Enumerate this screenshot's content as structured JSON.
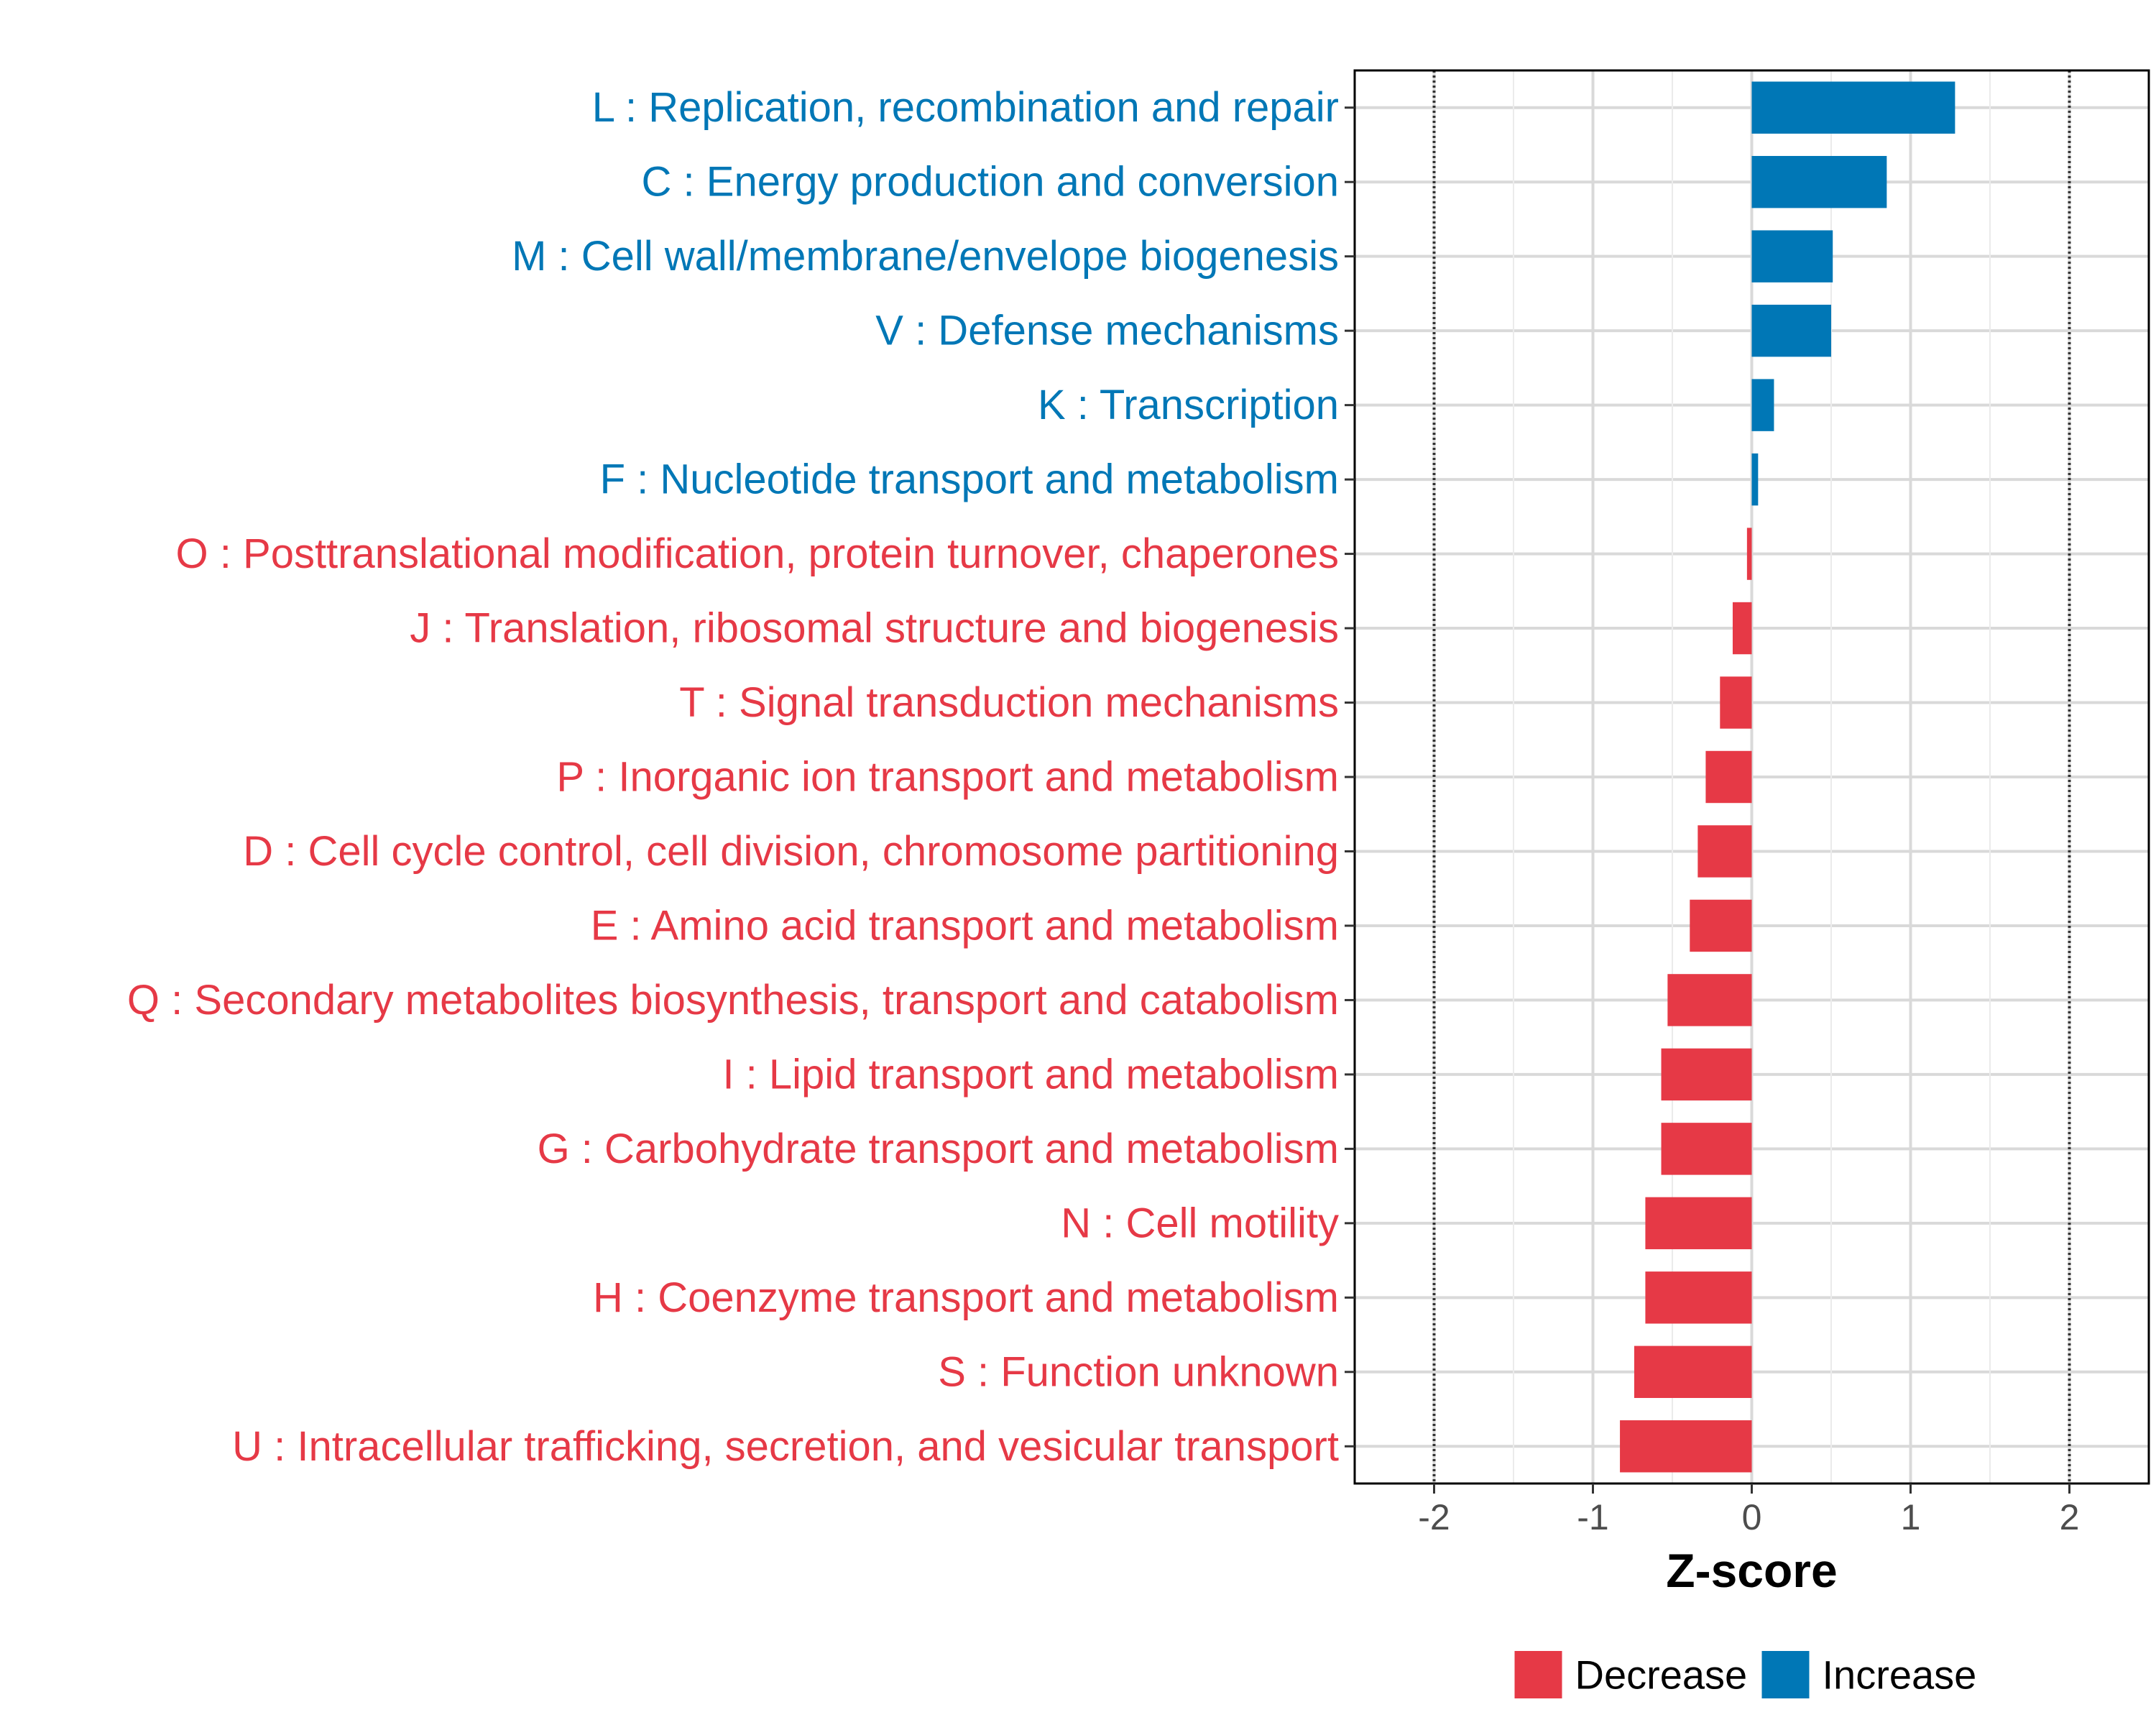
{
  "chart_data": {
    "type": "bar",
    "orientation": "horizontal",
    "xlabel": "Z-score",
    "xlim": [
      -2.5,
      2.5
    ],
    "xticks": [
      -2,
      -1,
      0,
      1,
      2
    ],
    "xtick_labels": [
      "-2",
      "-1",
      "0",
      "1",
      "2"
    ],
    "reference_lines": [
      -2,
      2
    ],
    "grid": true,
    "legend_placement": "bottom",
    "colors": {
      "Decrease": "#e63946",
      "Increase": "#0077b6"
    },
    "legend": [
      {
        "label": "Decrease",
        "color": "#e63946"
      },
      {
        "label": "Increase",
        "color": "#0077b6"
      }
    ],
    "categories": [
      "L : Replication, recombination and repair",
      "C : Energy production and conversion",
      "M : Cell wall/membrane/envelope biogenesis",
      "V : Defense mechanisms",
      "K : Transcription",
      "F : Nucleotide transport and metabolism",
      "O : Posttranslational modification, protein turnover, chaperones",
      "J : Translation, ribosomal structure and biogenesis",
      "T : Signal transduction mechanisms",
      "P : Inorganic ion transport and metabolism",
      "D : Cell cycle control, cell division, chromosome partitioning",
      "E : Amino acid transport and metabolism",
      "Q : Secondary metabolites biosynthesis, transport and catabolism",
      "I : Lipid transport and metabolism",
      "G : Carbohydrate transport and metabolism",
      "N : Cell motility",
      "H : Coenzyme transport and metabolism",
      "S : Function unknown",
      "U : Intracellular trafficking, secretion, and vesicular transport"
    ],
    "values": [
      1.28,
      0.85,
      0.51,
      0.5,
      0.14,
      0.04,
      -0.03,
      -0.12,
      -0.2,
      -0.29,
      -0.34,
      -0.39,
      -0.53,
      -0.57,
      -0.57,
      -0.67,
      -0.67,
      -0.74,
      -0.83
    ],
    "groups": [
      "Increase",
      "Increase",
      "Increase",
      "Increase",
      "Increase",
      "Increase",
      "Decrease",
      "Decrease",
      "Decrease",
      "Decrease",
      "Decrease",
      "Decrease",
      "Decrease",
      "Decrease",
      "Decrease",
      "Decrease",
      "Decrease",
      "Decrease",
      "Decrease"
    ]
  }
}
